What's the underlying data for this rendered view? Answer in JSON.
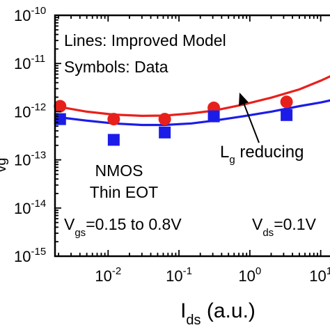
{
  "chart_data": {
    "type": "scatter",
    "xscale": "log",
    "yscale": "log",
    "xlim": [
      0.00178,
      19
    ],
    "ylim": [
      1e-15,
      1e-10
    ],
    "xticks": [
      {
        "value": 0.01,
        "base": "10",
        "exp": "-2"
      },
      {
        "value": 0.1,
        "base": "10",
        "exp": "-1"
      },
      {
        "value": 1,
        "base": "10",
        "exp": "0"
      },
      {
        "value": 10,
        "base": "10",
        "exp": "1"
      }
    ],
    "yticks": [
      {
        "value": 1e-10,
        "base": "10",
        "exp": "-10"
      },
      {
        "value": 1e-11,
        "base": "10",
        "exp": "-11"
      },
      {
        "value": 1e-12,
        "base": "10",
        "exp": "-12"
      },
      {
        "value": 1e-13,
        "base": "10",
        "exp": "-13"
      },
      {
        "value": 1e-14,
        "base": "10",
        "exp": "-14"
      },
      {
        "value": 1e-15,
        "base": "10",
        "exp": "-15"
      }
    ],
    "xlabel": {
      "main": "I",
      "sub": "ds",
      "rest": " (a.u.)"
    },
    "ylabel": {
      "visible": "vg"
    },
    "series": [
      {
        "marker": "circle",
        "color": "#e8201c",
        "points": [
          [
            0.0021,
            1.3e-12
          ],
          [
            0.012,
            7e-13
          ],
          [
            0.063,
            7e-13
          ],
          [
            0.31,
            1.2e-12
          ],
          [
            3.3,
            1.6e-12
          ]
        ],
        "line": [
          [
            0.0021,
            1.25e-12
          ],
          [
            0.005,
            1e-12
          ],
          [
            0.012,
            8.7e-13
          ],
          [
            0.03,
            8.2e-13
          ],
          [
            0.063,
            8.3e-13
          ],
          [
            0.15,
            9.2e-13
          ],
          [
            0.31,
            1.05e-12
          ],
          [
            0.8,
            1.4e-12
          ],
          [
            2,
            1.95e-12
          ],
          [
            5,
            2.9e-12
          ],
          [
            10,
            4.4e-12
          ],
          [
            19,
            6.8e-12
          ]
        ]
      },
      {
        "marker": "square",
        "color": "#1c1ce8",
        "points": [
          [
            0.0021,
            7e-13
          ],
          [
            0.012,
            2.6e-13
          ],
          [
            0.063,
            3.7e-13
          ],
          [
            0.31,
            8e-13
          ],
          [
            3.3,
            8.5e-13
          ]
        ],
        "line": [
          [
            0.0021,
            7.6e-13
          ],
          [
            0.005,
            6.5e-13
          ],
          [
            0.012,
            5.7e-13
          ],
          [
            0.03,
            5.3e-13
          ],
          [
            0.063,
            5.3e-13
          ],
          [
            0.15,
            5.7e-13
          ],
          [
            0.31,
            6.5e-13
          ],
          [
            0.8,
            8e-13
          ],
          [
            2,
            1e-12
          ],
          [
            5,
            1.3e-12
          ],
          [
            10,
            1.55e-12
          ],
          [
            19,
            1.9e-12
          ]
        ]
      }
    ],
    "annotations": {
      "lines_note": "Lines: Improved Model",
      "symbols_note": "Symbols: Data",
      "lg_main": "L",
      "lg_sub": "g",
      "lg_rest": " reducing",
      "nmos": "NMOS",
      "thin_eot": "Thin EOT",
      "vgs_main": "V",
      "vgs_sub": "gs",
      "vgs_rest": "=0.15 to 0.8V",
      "vds_main": "V",
      "vds_sub": "ds",
      "vds_rest": "=0.1V"
    }
  }
}
